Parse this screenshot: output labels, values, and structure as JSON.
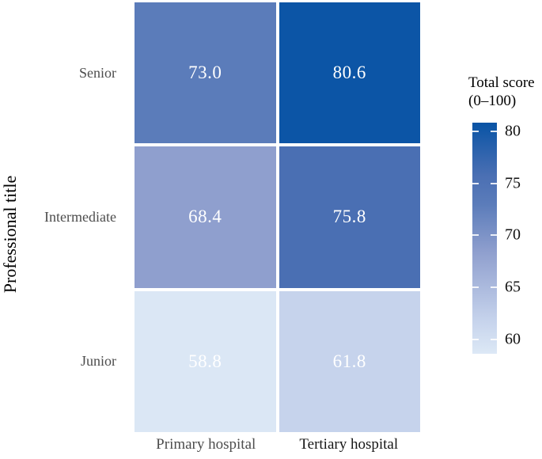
{
  "chart_data": {
    "type": "heatmap",
    "title": "",
    "xlabel": "",
    "ylabel": "Professional title",
    "x_categories": [
      "Primary hospital",
      "Tertiary hospital"
    ],
    "y_categories": [
      "Senior",
      "Intermediate",
      "Junior"
    ],
    "values": [
      [
        73.0,
        80.6
      ],
      [
        68.4,
        75.8
      ],
      [
        58.8,
        61.8
      ]
    ],
    "value_labels": [
      [
        "73.0",
        "80.6"
      ],
      [
        "68.4",
        "75.8"
      ],
      [
        "58.8",
        "61.8"
      ]
    ],
    "cell_colors": [
      [
        "#5b7cba",
        "#0c55a6"
      ],
      [
        "#8f9fce",
        "#4a6fb3"
      ],
      [
        "#dbe7f5",
        "#c6d3ec"
      ]
    ],
    "grid": "off",
    "legend": {
      "position": "right",
      "title_line1": "Total score",
      "title_line2": "(0–100)",
      "ticks": [
        80,
        75,
        70,
        65,
        60
      ],
      "scale_min": 58.6,
      "scale_max": 80.85,
      "gradient_stops": [
        {
          "value": 80.85,
          "color": "#0a53a4"
        },
        {
          "value": 80.6,
          "color": "#0c55a6"
        },
        {
          "value": 75.8,
          "color": "#4a6fb3"
        },
        {
          "value": 73.0,
          "color": "#5b7cba"
        },
        {
          "value": 68.4,
          "color": "#8f9fce"
        },
        {
          "value": 61.8,
          "color": "#c6d3ec"
        },
        {
          "value": 58.8,
          "color": "#dbe7f5"
        },
        {
          "value": 58.6,
          "color": "#dce8f6"
        }
      ]
    }
  },
  "styles": {
    "x_tick_label_colors": [
      "#4d4d4d",
      "#161616"
    ],
    "y_tick_label_color": "#4d4d4d",
    "cell_value_color": "#ffffff",
    "cell_gap_color": "#ffffff"
  }
}
